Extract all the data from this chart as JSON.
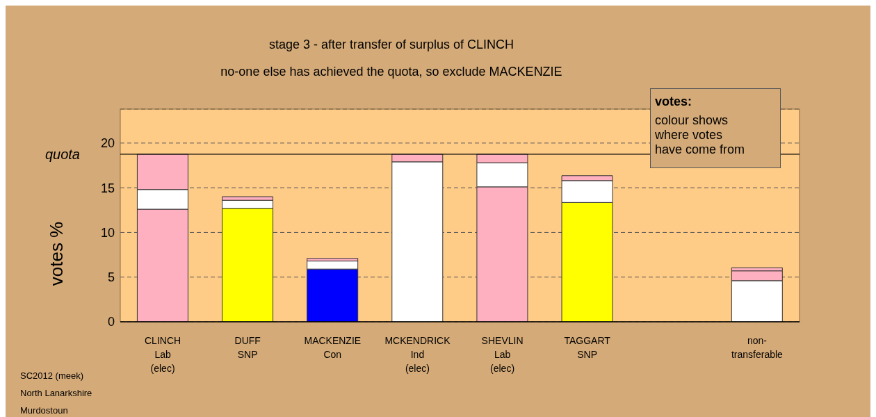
{
  "chart_data": {
    "type": "bar",
    "stacked": true,
    "title": "stage 3 - after transfer of surplus of CLINCH",
    "subtitle": "no-one else has achieved the quota, so exclude MACKENZIE",
    "ylabel": "votes %",
    "categories": [
      "CLINCH\nLab\n(elec)",
      "DUFF\nSNP",
      "MACKENZIE\nCon",
      "MCKENDRICK\nInd\n(elec)",
      "SHEVLIN\nLab\n(elec)",
      "TAGGART\nSNP",
      null,
      "non-\ntransferable"
    ],
    "series": [
      {
        "values": [
          12.6,
          12.7,
          5.9,
          17.9,
          15.1,
          13.35,
          null,
          4.6
        ],
        "colors": [
          "#ffb0c0",
          "#ffff00",
          "#0000ff",
          "#ffffff",
          "#ffb0c0",
          "#ffff00",
          "#ffffff",
          "#ffffff"
        ]
      },
      {
        "values": [
          2.2,
          0.9,
          0.9,
          0.85,
          2.7,
          2.45,
          null,
          1.1
        ],
        "colors": [
          "#ffffff",
          "#ffffff",
          "#ffffff",
          "#ffb0c0",
          "#ffffff",
          "#ffffff",
          "#ffffff",
          "#ffb0c0"
        ]
      },
      {
        "values": [
          3.95,
          0.4,
          0.3,
          null,
          0.95,
          0.55,
          null,
          0.35
        ],
        "colors": [
          "#ffb0c0",
          "#ffb0c0",
          "#ffb0c0",
          "#ffb0c0",
          "#ffb0c0",
          "#ffb0c0",
          "#ffb0c0",
          "#ffb0c0"
        ]
      }
    ],
    "ylim": [
      0,
      23.8
    ],
    "yticks": [
      0,
      5,
      10,
      15,
      20
    ],
    "grid": "y",
    "legend": false,
    "ref_lines": [
      {
        "axis": "y",
        "value": 18.75,
        "label": "quota"
      }
    ],
    "annotations": [
      "votes:",
      "colour shows\nwhere votes\nhave come from",
      "SC2012 (meek)",
      "North Lanarkshire",
      "Murdostoun"
    ]
  }
}
